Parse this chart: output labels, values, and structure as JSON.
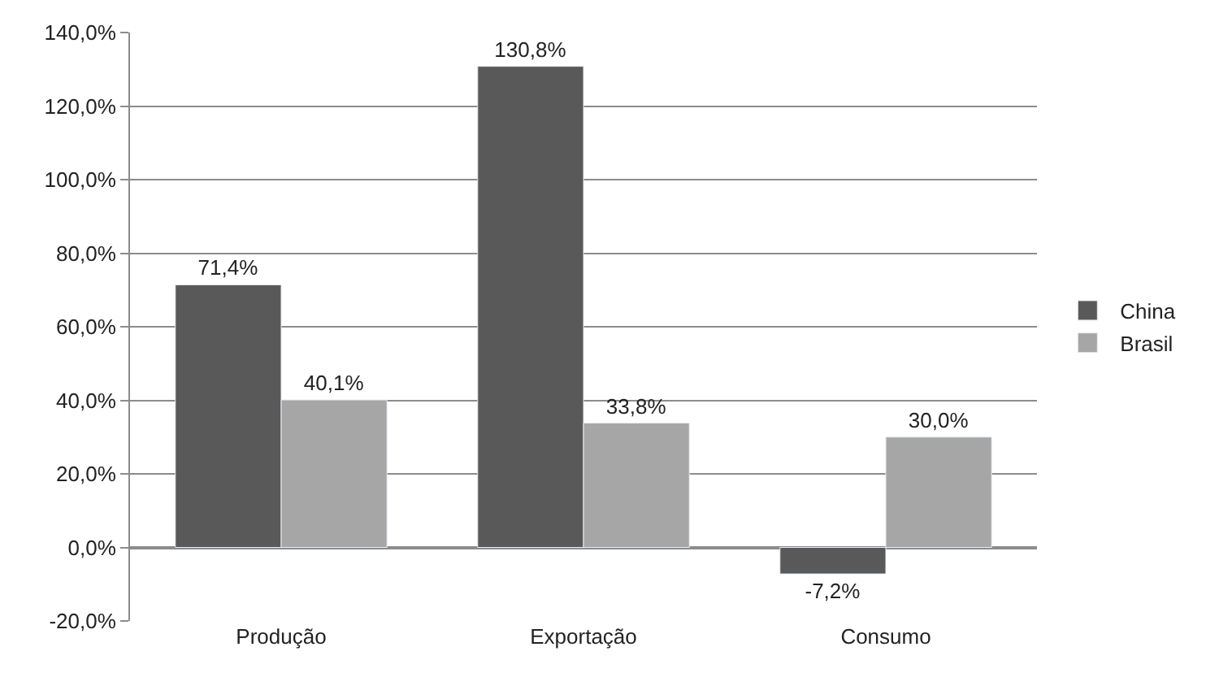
{
  "chart_data": {
    "type": "bar",
    "categories": [
      "Produção",
      "Exportação",
      "Consumo"
    ],
    "series": [
      {
        "name": "China",
        "color": "#595959",
        "values": [
          71.4,
          130.8,
          -7.2
        ],
        "value_labels": [
          "71,4%",
          "130,8%",
          "-7,2%"
        ]
      },
      {
        "name": "Brasil",
        "color": "#a6a6a6",
        "values": [
          40.1,
          33.8,
          30.0
        ],
        "value_labels": [
          "40,1%",
          "33,8%",
          "30,0%"
        ]
      }
    ],
    "ylim": [
      -20,
      140
    ],
    "yticks": [
      {
        "value": -20,
        "label": "-20,0%"
      },
      {
        "value": 0,
        "label": "0,0%"
      },
      {
        "value": 20,
        "label": "20,0%"
      },
      {
        "value": 40,
        "label": "40,0%"
      },
      {
        "value": 60,
        "label": "60,0%"
      },
      {
        "value": 80,
        "label": "80,0%"
      },
      {
        "value": 100,
        "label": "100,0%"
      },
      {
        "value": 120,
        "label": "120,0%"
      },
      {
        "value": 140,
        "label": "140,0%"
      }
    ],
    "grid": "y",
    "legend": "right"
  }
}
